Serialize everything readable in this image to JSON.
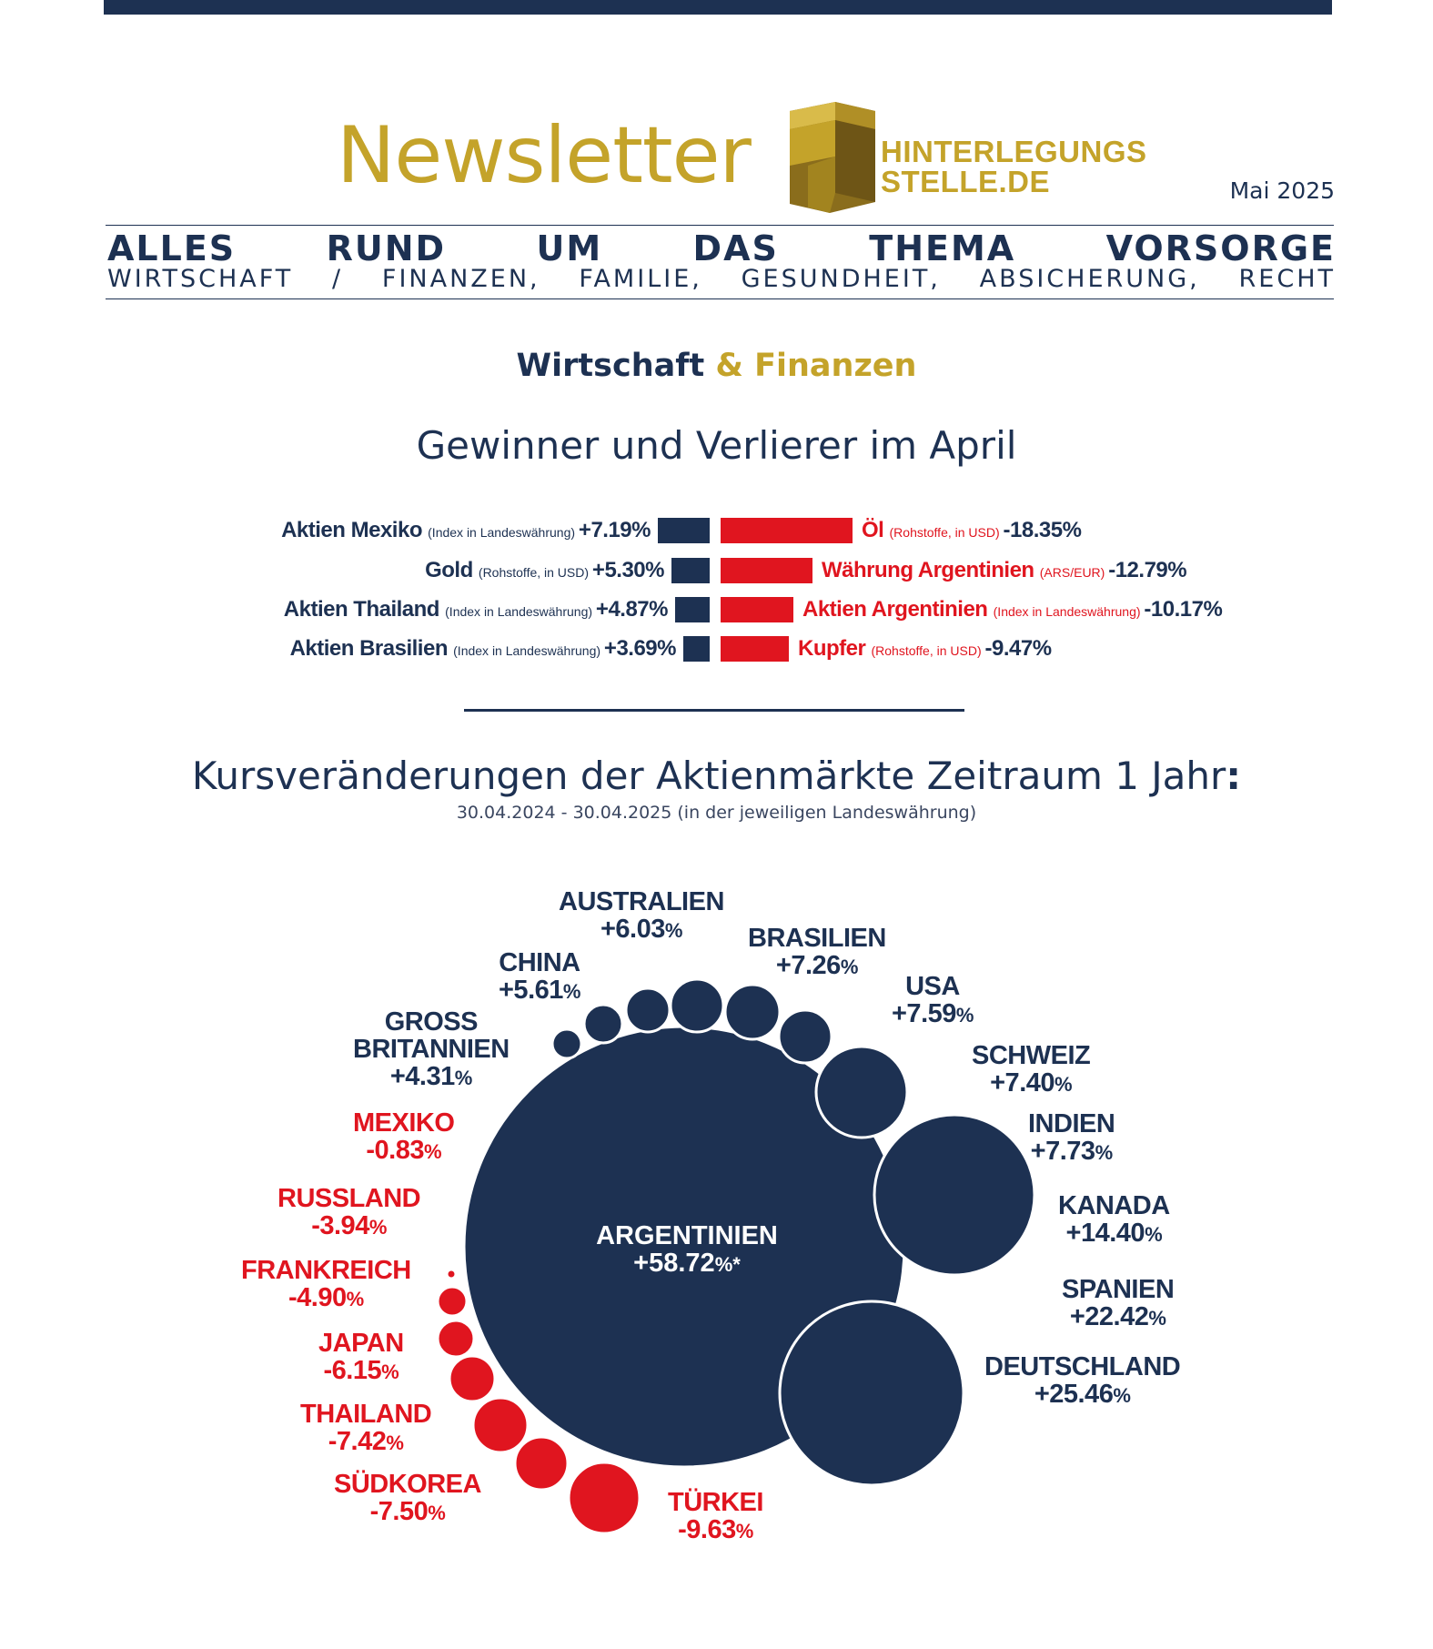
{
  "header": {
    "newsletter_title": "Newsletter",
    "logo_line1": "HINTERLEGUNGS",
    "logo_line2": "STELLE.DE",
    "issue_date": "Mai 2025",
    "tagline": "ALLES RUND UM DAS THEMA VORSORGE",
    "topics": "WIRTSCHAFT / FINANZEN, FAMILIE, GESUNDHEIT, ABSICHERUNG, RECHT"
  },
  "section": {
    "part1": "Wirtschaft",
    "part2": "& Finanzen"
  },
  "colors": {
    "navy": "#1d3152",
    "gold": "#c4a32a",
    "red": "#e0151f"
  },
  "chart_data": [
    {
      "type": "bar",
      "title": "Gewinner und Verlierer im April",
      "winners": [
        {
          "name": "Aktien Mexiko",
          "note": "(Index in Landeswährung)",
          "label": "+7.19%",
          "value": 7.19
        },
        {
          "name": "Gold",
          "note": "(Rohstoffe, in USD)",
          "label": "+5.30%",
          "value": 5.3
        },
        {
          "name": "Aktien Thailand",
          "note": "(Index in Landeswährung)",
          "label": "+4.87%",
          "value": 4.87
        },
        {
          "name": "Aktien Brasilien",
          "note": "(Index in Landeswährung)",
          "label": "+3.69%",
          "value": 3.69
        }
      ],
      "losers": [
        {
          "name": "Öl",
          "note": "(Rohstoffe, in USD)",
          "label": "-18.35%",
          "value": -18.35
        },
        {
          "name": "Währung Argentinien",
          "note": "(ARS/EUR)",
          "label": "-12.79%",
          "value": -12.79
        },
        {
          "name": "Aktien Argentinien",
          "note": "(Index in Landeswährung)",
          "label": "-10.17%",
          "value": -10.17
        },
        {
          "name": "Kupfer",
          "note": "(Rohstoffe, in USD)",
          "label": "-9.47%",
          "value": -9.47
        }
      ]
    },
    {
      "type": "bubble",
      "title": "Kursveränderungen der Aktienmärkte Zeitraum 1 Jahr",
      "title_suffix": ":",
      "subtitle": "30.04.2024 - 30.04.2025 (in der jeweiligen Landeswährung)",
      "center": {
        "name": "ARGENTINIEN",
        "label": "+58.72",
        "pct": "%*",
        "value": 58.72
      },
      "countries": [
        {
          "name": "GROSS BRITANNIEN",
          "line1": "GROSS",
          "line2": "BRITANNIEN",
          "label": "+4.31",
          "value": 4.31
        },
        {
          "name": "CHINA",
          "label": "+5.61",
          "value": 5.61
        },
        {
          "name": "AUSTRALIEN",
          "label": "+6.03",
          "value": 6.03
        },
        {
          "name": "BRASILIEN",
          "label": "+7.26",
          "value": 7.26
        },
        {
          "name": "USA",
          "label": "+7.59",
          "value": 7.59
        },
        {
          "name": "SCHWEIZ",
          "label": "+7.40",
          "value": 7.4
        },
        {
          "name": "INDIEN",
          "label": "+7.73",
          "value": 7.73
        },
        {
          "name": "KANADA",
          "label": "+14.40",
          "value": 14.4
        },
        {
          "name": "SPANIEN",
          "label": "+22.42",
          "value": 22.42
        },
        {
          "name": "DEUTSCHLAND",
          "label": "+25.46",
          "value": 25.46
        },
        {
          "name": "MEXIKO",
          "label": "-0.83",
          "value": -0.83
        },
        {
          "name": "RUSSLAND",
          "label": "-3.94",
          "value": -3.94
        },
        {
          "name": "FRANKREICH",
          "label": "-4.90",
          "value": -4.9
        },
        {
          "name": "JAPAN",
          "label": "-6.15",
          "value": -6.15
        },
        {
          "name": "THAILAND",
          "label": "-7.42",
          "value": -7.42
        },
        {
          "name": "SÜDKOREA",
          "label": "-7.50",
          "value": -7.5
        },
        {
          "name": "TÜRKEI",
          "label": "-9.63",
          "value": -9.63
        }
      ],
      "pct_sign": "%"
    }
  ]
}
